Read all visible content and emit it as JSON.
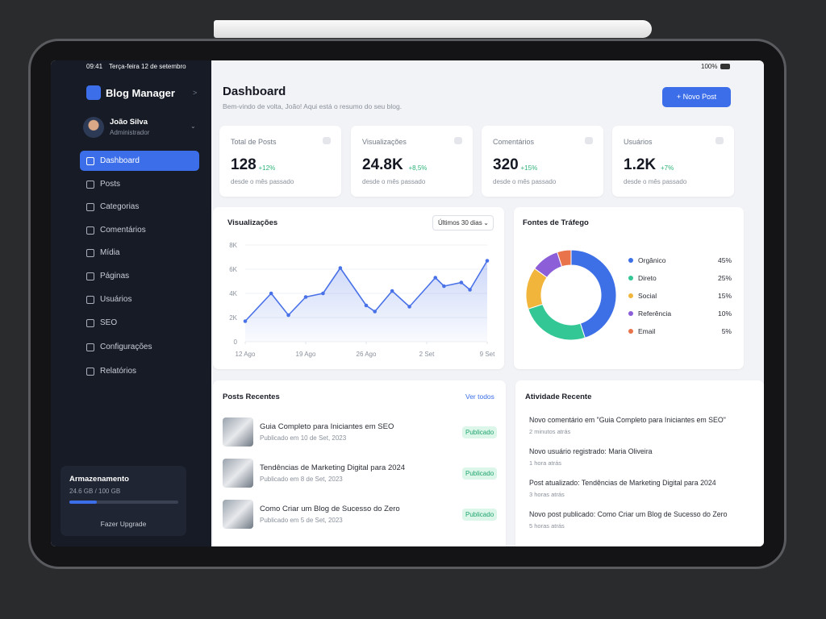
{
  "status": {
    "time": "09:41",
    "date": "Terça-feira 12 de setembro",
    "battery": "100%"
  },
  "sidebar": {
    "brand": "Blog Manager",
    "user": {
      "name": "João Silva",
      "role": "Administrador"
    },
    "nav": [
      "Dashboard",
      "Posts",
      "Categorias",
      "Comentários",
      "Mídia",
      "Páginas",
      "Usuários",
      "SEO",
      "Configurações",
      "Relatórios"
    ],
    "storage": {
      "title": "Armazenamento",
      "usage": "24.6 GB / 100 GB",
      "action": "Fazer Upgrade"
    }
  },
  "header": {
    "title": "Dashboard",
    "subtitle": "Bem-vindo de volta, João! Aqui está o resumo do seu blog.",
    "button": "Novo Post"
  },
  "stats": [
    {
      "label": "Total de Posts",
      "value": "128",
      "change": "+12%",
      "note": "desde o mês passado"
    },
    {
      "label": "Visualizações",
      "value": "24.8K",
      "change": "+8,5%",
      "note": "desde o mês passado"
    },
    {
      "label": "Comentários",
      "value": "320",
      "change": "+15%",
      "note": "desde o mês passado"
    },
    {
      "label": "Usuários",
      "value": "1.2K",
      "change": "+7%",
      "note": "desde o mês passado"
    }
  ],
  "chart_data": [
    {
      "type": "line",
      "title": "Visualizações",
      "filter": "Últimos 30 dias",
      "x": [
        0,
        3,
        5,
        7,
        9,
        11,
        14,
        15,
        17,
        19,
        22,
        23,
        25,
        26,
        28
      ],
      "values": [
        1700,
        4000,
        2200,
        3700,
        4000,
        6100,
        3000,
        2500,
        4200,
        2900,
        5300,
        4600,
        4900,
        4300,
        6700
      ],
      "color": "#4a72e8",
      "xlim": [
        0,
        28
      ],
      "xticks": [
        {
          "value": 0,
          "label": "12 Ago"
        },
        {
          "value": 7,
          "label": "19 Ago"
        },
        {
          "value": 14,
          "label": "26 Ago"
        },
        {
          "value": 21,
          "label": "2 Set"
        },
        {
          "value": 28,
          "label": "9 Set"
        }
      ],
      "ylim": [
        0,
        8000
      ],
      "yticks": [
        0,
        {
          "value": 2000,
          "label": "2K"
        },
        {
          "value": 4000,
          "label": "4K"
        },
        {
          "value": 6000,
          "label": "6K"
        },
        {
          "value": 8000,
          "label": "8K"
        }
      ],
      "grid": true
    },
    {
      "type": "pie",
      "title": "Fontes de Tráfego",
      "categories": [
        "Orgânico",
        "Direto",
        "Social",
        "Referência",
        "Email"
      ],
      "values": [
        45,
        25,
        15,
        10,
        5
      ],
      "value_labels": [
        "45%",
        "25%",
        "15%",
        "10%",
        "5%"
      ],
      "colors": [
        "#3d6fe6",
        "#34c796",
        "#f2b53b",
        "#8c5ed8",
        "#e9744b"
      ]
    }
  ],
  "recent_posts": {
    "title": "Posts Recentes",
    "link": "Ver todos",
    "items": [
      {
        "title": "Guia Completo para Iniciantes em SEO",
        "date": "Publicado em 10 de Set, 2023",
        "status": "Publicado"
      },
      {
        "title": "Tendências de Marketing Digital para 2024",
        "date": "Publicado em 8 de Set, 2023",
        "status": "Publicado"
      },
      {
        "title": "Como Criar um Blog de Sucesso do Zero",
        "date": "Publicado em 5 de Set, 2023",
        "status": "Publicado"
      }
    ]
  },
  "activity": {
    "title": "Atividade Recente",
    "items": [
      {
        "text": "Novo comentário em \"Guia Completo para Iniciantes em SEO\"",
        "time": "2 minutos atrás"
      },
      {
        "text": "Novo usuário registrado: Maria Oliveira",
        "time": "1 hora atrás"
      },
      {
        "text": "Post atualizado: Tendências de Marketing Digital para 2024",
        "time": "3 horas atrás"
      },
      {
        "text": "Novo post publicado: Como Criar um Blog de Sucesso do Zero",
        "time": "5 horas atrás"
      }
    ]
  }
}
